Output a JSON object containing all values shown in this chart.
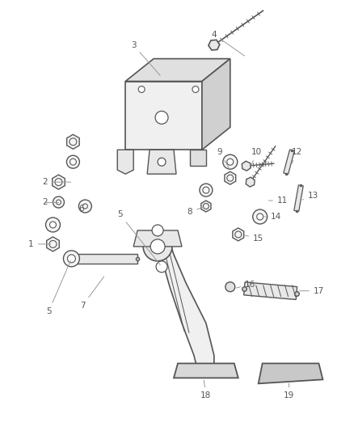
{
  "bg_color": "#ffffff",
  "line_color": "#555555",
  "text_color": "#555555",
  "label_fontsize": 7.5,
  "figsize": [
    4.38,
    5.33
  ],
  "dpi": 100
}
